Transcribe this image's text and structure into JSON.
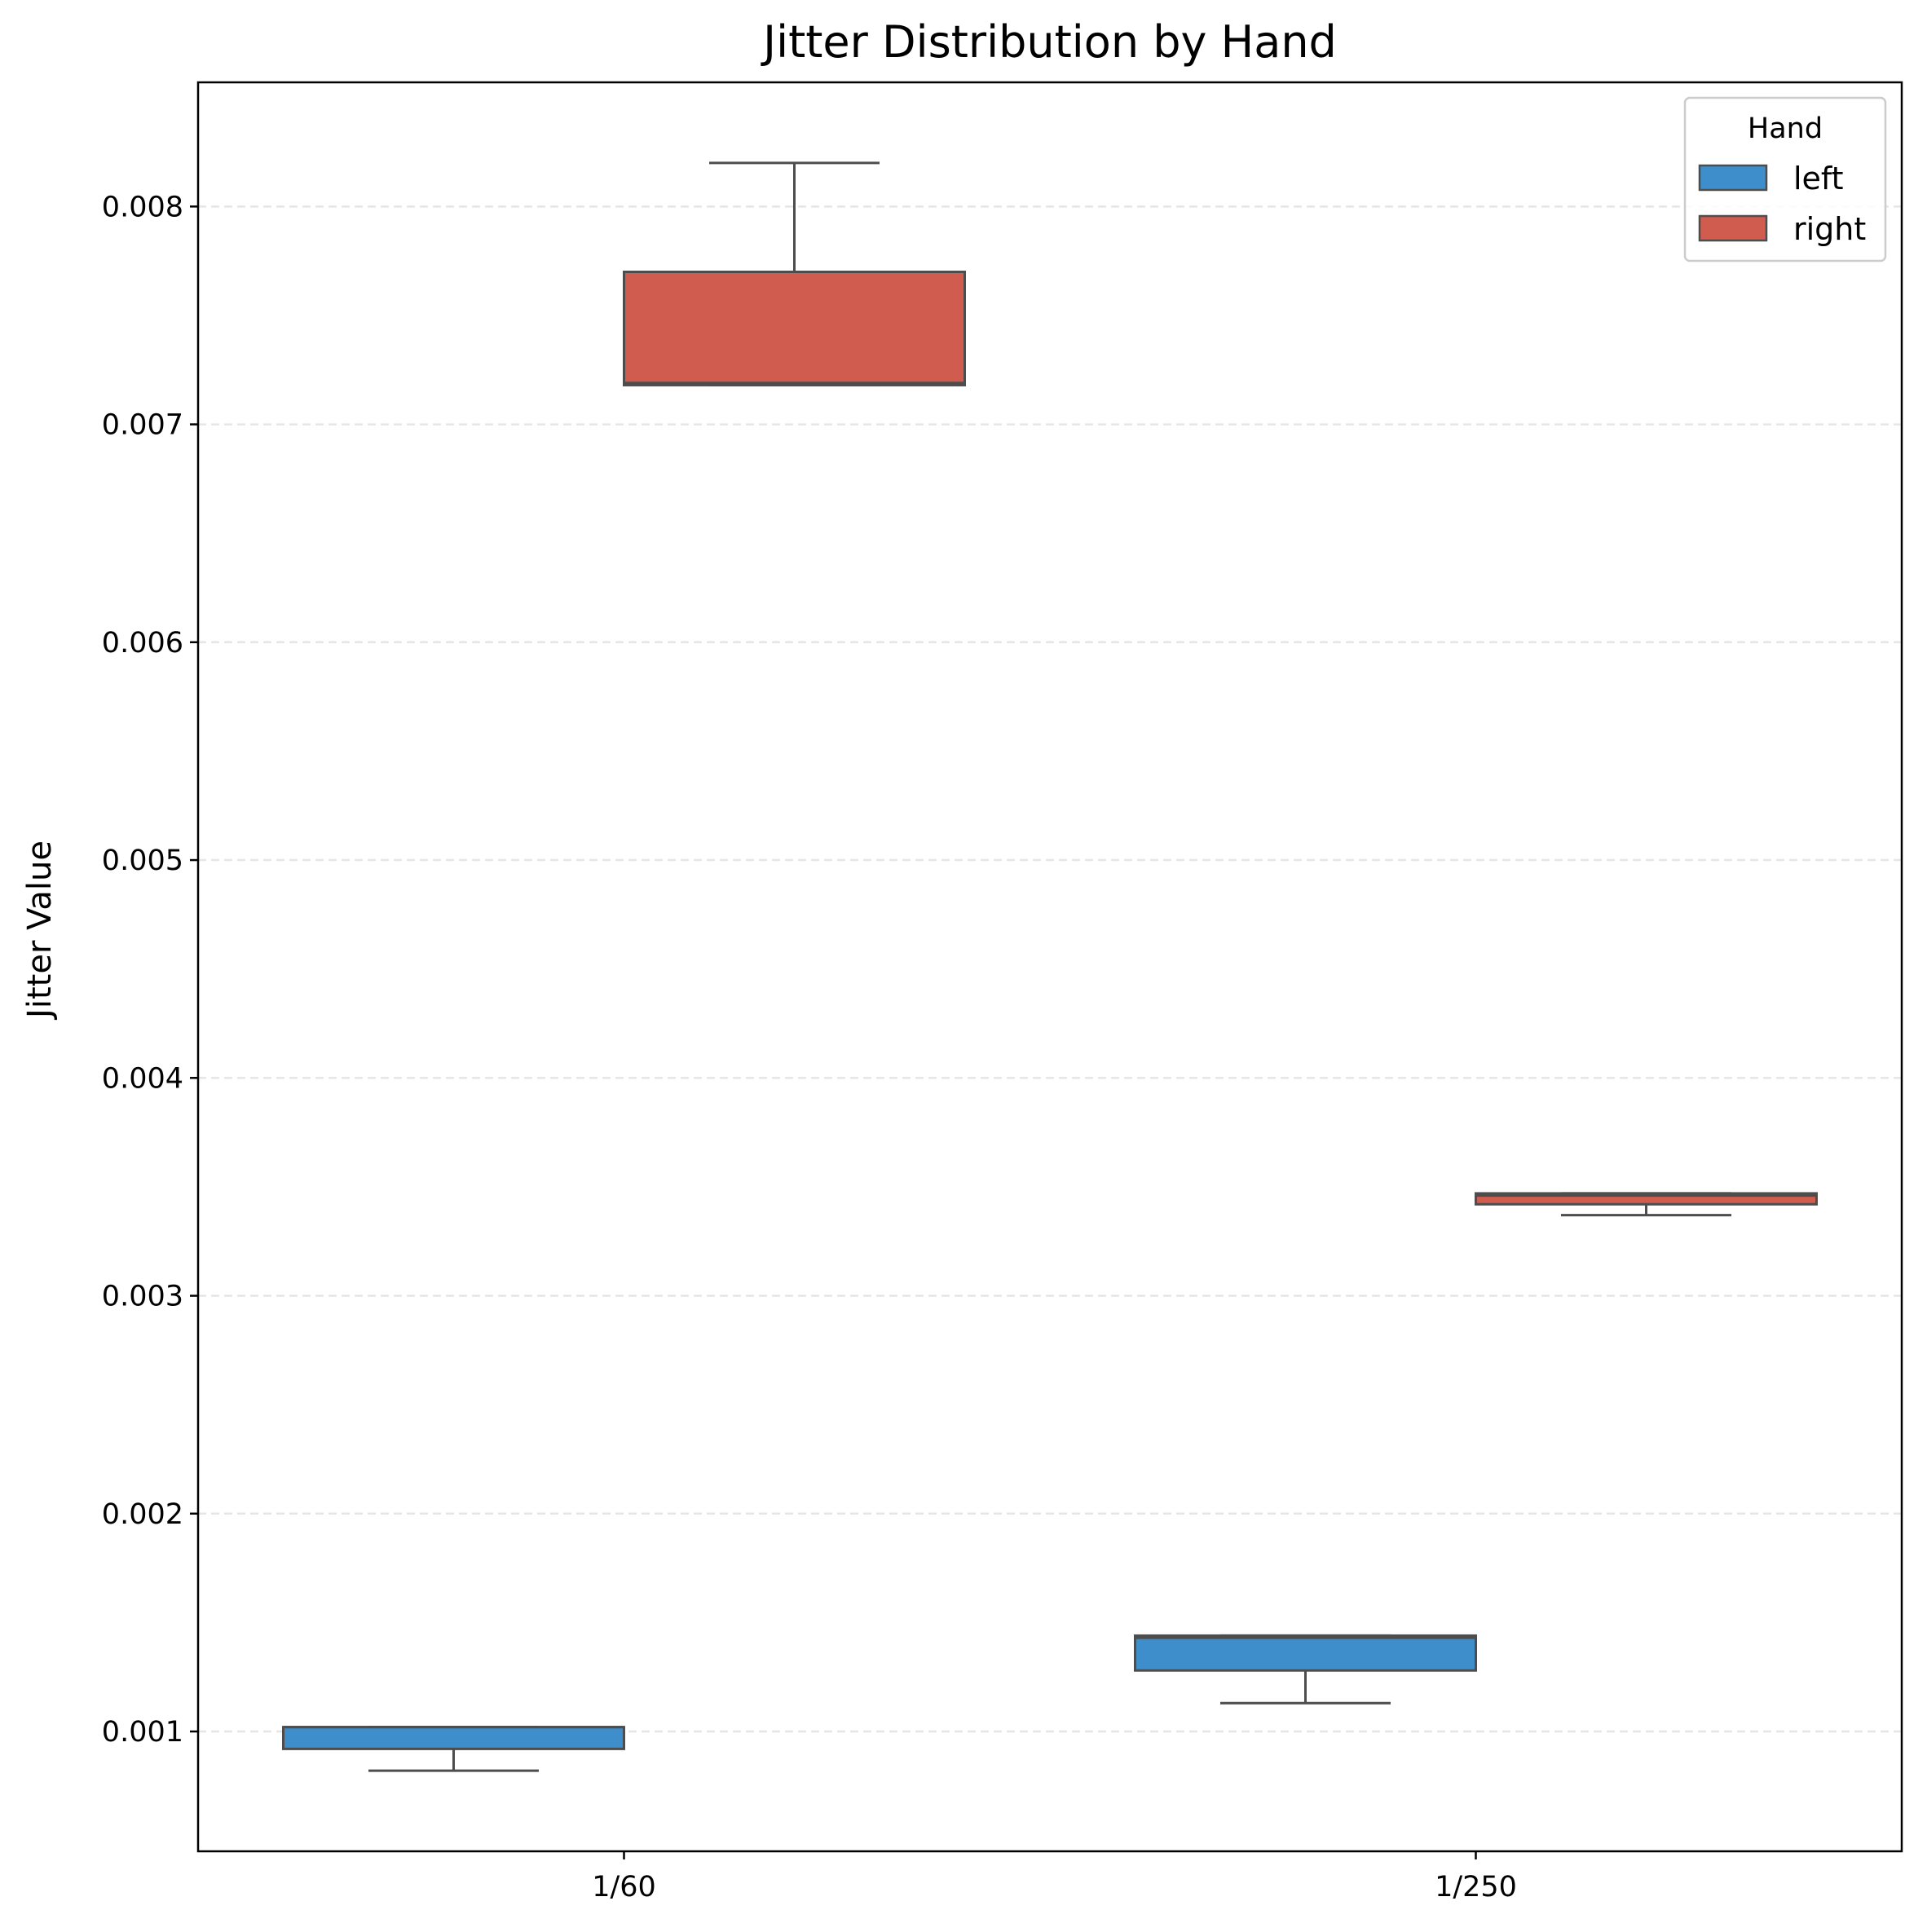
{
  "chart_data": {
    "type": "box",
    "title": "Jitter Distribution by Hand",
    "xlabel": "",
    "ylabel": "Jitter Value",
    "categories": [
      "1/60",
      "1/250"
    ],
    "ylim": [
      0.00045,
      0.00857
    ],
    "yticks": [
      0.001,
      0.002,
      0.003,
      0.004,
      0.005,
      0.006,
      0.007,
      0.008
    ],
    "ytick_labels": [
      "0.001",
      "0.002",
      "0.003",
      "0.004",
      "0.005",
      "0.006",
      "0.007",
      "0.008"
    ],
    "grid": {
      "y": true,
      "x": false,
      "style": "dashed"
    },
    "legend": {
      "title": "Hand",
      "placement": "top-right"
    },
    "series": [
      {
        "name": "left",
        "color": "#3d8ecb",
        "boxes": [
          {
            "category": "1/60",
            "min": 0.00082,
            "q1": 0.00092,
            "median": 0.00102,
            "q3": 0.00102,
            "max": 0.00102
          },
          {
            "category": "1/250",
            "min": 0.00113,
            "q1": 0.00128,
            "median": 0.00143,
            "q3": 0.00144,
            "max": 0.00144
          }
        ]
      },
      {
        "name": "right",
        "color": "#d05c4f",
        "boxes": [
          {
            "category": "1/60",
            "min": 0.00718,
            "q1": 0.00718,
            "median": 0.00719,
            "q3": 0.0077,
            "max": 0.0082
          },
          {
            "category": "1/250",
            "min": 0.00337,
            "q1": 0.00342,
            "median": 0.00346,
            "q3": 0.00347,
            "max": 0.00347
          }
        ]
      }
    ]
  }
}
